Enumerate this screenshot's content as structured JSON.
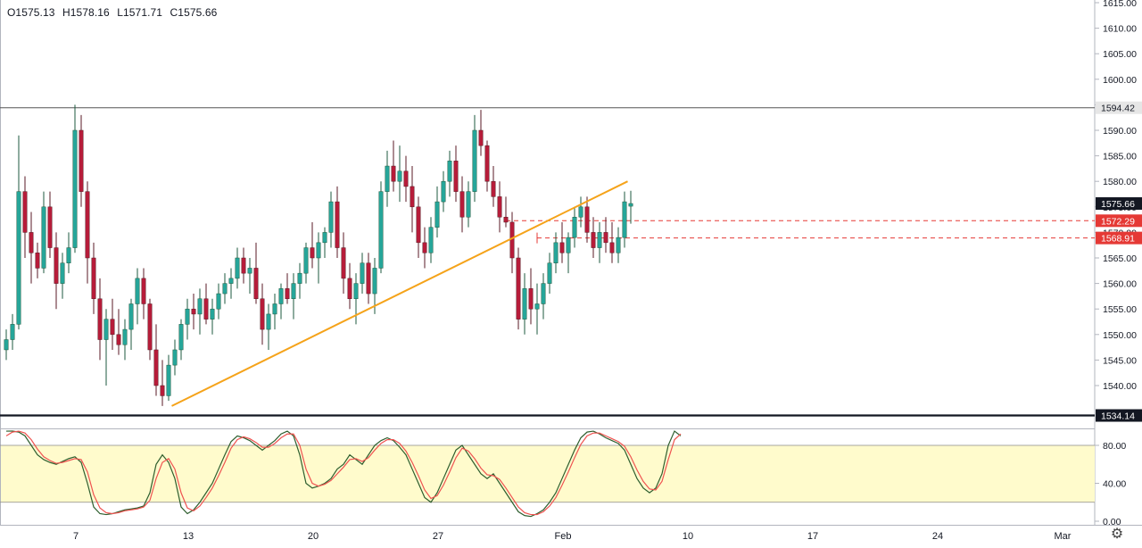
{
  "header": {
    "open": "O1575.13",
    "high": "H1578.16",
    "low": "L1571.71",
    "close": "C1575.66"
  },
  "colors": {
    "up": "#26a69a",
    "down": "#b71c3a",
    "trendline": "#f5a31a",
    "level_line": "#131722",
    "red_dashed": "#e53935",
    "osc_band": "#fffbcc",
    "osc_k": "#2e5e2e",
    "osc_d": "#ef5350"
  },
  "icons": {
    "settings": "gear-icon"
  },
  "chart_data": [
    {
      "type": "candlestick",
      "ylim": [
        1532,
        1615
      ],
      "price_ticks": [
        1540,
        1545,
        1550,
        1555,
        1560,
        1565,
        1570,
        1575,
        1580,
        1585,
        1590,
        1595,
        1600,
        1605,
        1610,
        1615
      ],
      "price_tick_labels": [
        "1540.00",
        "1545.00",
        "1550.00",
        "1555.00",
        "1560.00",
        "1565.00",
        "1570.00",
        "1575.00",
        "1580.00",
        "1585.00",
        "1590.00",
        "1595.00",
        "1600.00",
        "1605.00",
        "1610.00",
        "1615.00"
      ],
      "x_tick_labels": [
        {
          "label": "7",
          "bar": 6
        },
        {
          "label": "13",
          "bar": 24
        },
        {
          "label": "20",
          "bar": 44
        },
        {
          "label": "27",
          "bar": 64
        },
        {
          "label": "Feb",
          "bar": 84
        },
        {
          "label": "10",
          "bar": 104
        },
        {
          "label": "17",
          "bar": 124
        },
        {
          "label": "24",
          "bar": 144
        },
        {
          "label": "Mar",
          "bar": 164
        }
      ],
      "horizontal_levels": [
        {
          "price": 1594.42,
          "label": "1594.42",
          "style": "solid-thin",
          "color": "#555555"
        },
        {
          "price": 1534.14,
          "label": "1534.14",
          "style": "solid-thick",
          "color": "#131722"
        }
      ],
      "dashed_levels": [
        {
          "price": 1572.29,
          "label": "1572.29",
          "color": "#e53935",
          "from_bar": 80
        },
        {
          "price": 1568.91,
          "label": "1568.91",
          "color": "#e53935",
          "from_bar": 85
        }
      ],
      "last_price": {
        "price": 1575.66,
        "label": "1575.66"
      },
      "trendline": {
        "from": {
          "bar": 26.5,
          "price": 1536.0
        },
        "to": {
          "bar": 99.5,
          "price": 1580.0
        }
      },
      "candles": [
        [
          1547,
          1551,
          1545,
          1549
        ],
        [
          1549,
          1554,
          1547,
          1552
        ],
        [
          1552,
          1589,
          1551,
          1578
        ],
        [
          1578,
          1581,
          1565,
          1570
        ],
        [
          1570,
          1574,
          1560,
          1566
        ],
        [
          1566,
          1568,
          1561,
          1563
        ],
        [
          1563,
          1578,
          1562,
          1575
        ],
        [
          1575,
          1578,
          1565,
          1567
        ],
        [
          1567,
          1570,
          1555,
          1560
        ],
        [
          1560,
          1566,
          1557,
          1564
        ],
        [
          1564,
          1570,
          1562,
          1567
        ],
        [
          1567,
          1595,
          1566,
          1590
        ],
        [
          1590,
          1593,
          1575,
          1578
        ],
        [
          1578,
          1580,
          1560,
          1565
        ],
        [
          1565,
          1568,
          1554,
          1557
        ],
        [
          1557,
          1561,
          1545,
          1549
        ],
        [
          1549,
          1555,
          1540,
          1553
        ],
        [
          1553,
          1557,
          1547,
          1550
        ],
        [
          1550,
          1555,
          1546,
          1548
        ],
        [
          1548,
          1553,
          1545,
          1551
        ],
        [
          1551,
          1557,
          1547,
          1556
        ],
        [
          1556,
          1563,
          1552,
          1561
        ],
        [
          1561,
          1563,
          1553,
          1556
        ],
        [
          1556,
          1557,
          1545,
          1547
        ],
        [
          1547,
          1552,
          1538,
          1540
        ],
        [
          1540,
          1545,
          1536,
          1538
        ],
        [
          1538,
          1546,
          1537,
          1544
        ],
        [
          1544,
          1549,
          1542,
          1547
        ],
        [
          1547,
          1553,
          1545,
          1552
        ],
        [
          1552,
          1557,
          1549,
          1555
        ],
        [
          1555,
          1558,
          1551,
          1554
        ],
        [
          1554,
          1559,
          1550,
          1557
        ],
        [
          1557,
          1560,
          1552,
          1553
        ],
        [
          1553,
          1557,
          1550,
          1555
        ],
        [
          1555,
          1560,
          1553,
          1558
        ],
        [
          1558,
          1562,
          1556,
          1560
        ],
        [
          1560,
          1563,
          1557,
          1561
        ],
        [
          1561,
          1567,
          1559,
          1565
        ],
        [
          1565,
          1567,
          1560,
          1562
        ],
        [
          1562,
          1565,
          1558,
          1563
        ],
        [
          1563,
          1568,
          1556,
          1557
        ],
        [
          1557,
          1560,
          1548,
          1551
        ],
        [
          1551,
          1556,
          1547,
          1554
        ],
        [
          1554,
          1558,
          1551,
          1556
        ],
        [
          1556,
          1560,
          1553,
          1559
        ],
        [
          1559,
          1562,
          1556,
          1557
        ],
        [
          1557,
          1562,
          1553,
          1560
        ],
        [
          1560,
          1564,
          1557,
          1562
        ],
        [
          1562,
          1568,
          1560,
          1567
        ],
        [
          1567,
          1572,
          1563,
          1565
        ],
        [
          1565,
          1570,
          1560,
          1568
        ],
        [
          1568,
          1571,
          1565,
          1570
        ],
        [
          1570,
          1578,
          1567,
          1576
        ],
        [
          1576,
          1579,
          1565,
          1567
        ],
        [
          1567,
          1570,
          1558,
          1561
        ],
        [
          1561,
          1564,
          1555,
          1557
        ],
        [
          1557,
          1562,
          1552,
          1560
        ],
        [
          1560,
          1566,
          1558,
          1564
        ],
        [
          1564,
          1566,
          1556,
          1558
        ],
        [
          1558,
          1565,
          1554,
          1563
        ],
        [
          1563,
          1580,
          1562,
          1578
        ],
        [
          1578,
          1586,
          1575,
          1583
        ],
        [
          1583,
          1588,
          1578,
          1580
        ],
        [
          1580,
          1587,
          1576,
          1582
        ],
        [
          1582,
          1585,
          1576,
          1579
        ],
        [
          1579,
          1583,
          1570,
          1575
        ],
        [
          1575,
          1577,
          1565,
          1568
        ],
        [
          1568,
          1571,
          1563,
          1566
        ],
        [
          1566,
          1573,
          1564,
          1571
        ],
        [
          1571,
          1579,
          1569,
          1576
        ],
        [
          1576,
          1582,
          1574,
          1580
        ],
        [
          1580,
          1586,
          1577,
          1584
        ],
        [
          1584,
          1587,
          1576,
          1578
        ],
        [
          1578,
          1581,
          1570,
          1573
        ],
        [
          1573,
          1580,
          1571,
          1578
        ],
        [
          1578,
          1593,
          1576,
          1590
        ],
        [
          1590,
          1594,
          1585,
          1587
        ],
        [
          1587,
          1588,
          1578,
          1580
        ],
        [
          1580,
          1583,
          1575,
          1577
        ],
        [
          1577,
          1580,
          1570,
          1573
        ],
        [
          1573,
          1577,
          1571,
          1572
        ],
        [
          1572,
          1574,
          1562,
          1565
        ],
        [
          1565,
          1567,
          1551,
          1553
        ],
        [
          1553,
          1562,
          1550,
          1559
        ],
        [
          1559,
          1563,
          1552,
          1555
        ],
        [
          1555,
          1560,
          1550,
          1556
        ],
        [
          1556,
          1562,
          1553,
          1560
        ],
        [
          1560,
          1566,
          1558,
          1564
        ],
        [
          1564,
          1570,
          1562,
          1568
        ],
        [
          1568,
          1572,
          1564,
          1566
        ],
        [
          1566,
          1570,
          1562,
          1569
        ],
        [
          1569,
          1575,
          1567,
          1573
        ],
        [
          1573,
          1577,
          1571,
          1575
        ],
        [
          1575,
          1577,
          1568,
          1570
        ],
        [
          1570,
          1573,
          1565,
          1567
        ],
        [
          1567,
          1572,
          1564,
          1570
        ],
        [
          1570,
          1573,
          1566,
          1568
        ],
        [
          1568,
          1572,
          1564,
          1566
        ],
        [
          1566,
          1571,
          1564,
          1569
        ],
        [
          1569,
          1578,
          1567,
          1576
        ],
        [
          1575.13,
          1578.16,
          1571.71,
          1575.66
        ]
      ]
    },
    {
      "type": "line",
      "indicator": "stochastic",
      "ylim": [
        0,
        100
      ],
      "ticks": [
        0,
        40,
        80
      ],
      "tick_labels": [
        "0.00",
        "40.00",
        "80.00"
      ],
      "band": [
        20,
        80
      ],
      "series": [
        {
          "values": [
            95,
            96,
            94,
            90,
            80,
            70,
            65,
            62,
            60,
            63,
            66,
            68,
            62,
            40,
            15,
            8,
            7,
            8,
            10,
            12,
            13,
            14,
            16,
            30,
            60,
            70,
            62,
            45,
            15,
            8,
            12,
            20,
            30,
            40,
            55,
            70,
            84,
            90,
            88,
            85,
            80,
            75,
            80,
            85,
            92,
            95,
            90,
            70,
            40,
            35,
            37,
            40,
            45,
            55,
            60,
            70,
            65,
            60,
            70,
            80,
            85,
            88,
            85,
            78,
            70,
            55,
            40,
            25,
            20,
            30,
            45,
            60,
            75,
            80,
            70,
            60,
            50,
            45,
            50,
            40,
            30,
            20,
            10,
            6,
            5,
            8,
            12,
            20,
            30,
            45,
            60,
            75,
            88,
            94,
            95,
            92,
            88,
            85,
            82,
            75,
            60,
            45,
            35,
            30,
            35,
            50,
            80,
            95,
            90
          ]
        },
        {
          "values": [
            90,
            94,
            95,
            93,
            86,
            76,
            68,
            64,
            61,
            62,
            64,
            66,
            65,
            52,
            28,
            14,
            9,
            8,
            9,
            11,
            12,
            13,
            15,
            22,
            45,
            62,
            66,
            55,
            30,
            14,
            11,
            16,
            25,
            35,
            48,
            62,
            77,
            86,
            89,
            87,
            83,
            78,
            78,
            82,
            88,
            92,
            92,
            80,
            55,
            40,
            37,
            39,
            43,
            50,
            57,
            65,
            66,
            63,
            67,
            75,
            82,
            86,
            86,
            82,
            74,
            62,
            48,
            33,
            24,
            27,
            38,
            52,
            67,
            77,
            74,
            66,
            56,
            49,
            48,
            44,
            35,
            25,
            15,
            9,
            7,
            7,
            10,
            16,
            25,
            38,
            52,
            67,
            81,
            90,
            93,
            93,
            90,
            87,
            84,
            79,
            68,
            54,
            42,
            34,
            33,
            42,
            65,
            86,
            92
          ]
        }
      ]
    }
  ]
}
